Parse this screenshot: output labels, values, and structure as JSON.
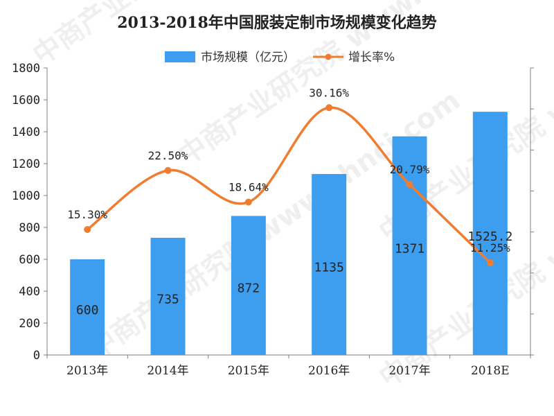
{
  "chart_data": {
    "type": "bar",
    "title": "2013-2018年中国服装定制市场规模变化趋势",
    "categories": [
      "2013年",
      "2014年",
      "2015年",
      "2016年",
      "2017年",
      "2018E"
    ],
    "series": [
      {
        "name": "市场规模（亿元）",
        "type": "bar",
        "values": [
          600,
          735,
          872,
          1135,
          1371,
          1525.2
        ],
        "labels": [
          "600",
          "735",
          "872",
          "1135",
          "1371",
          "1525.2"
        ],
        "color": "#3d9ef0",
        "axis": "left"
      },
      {
        "name": "增长率%",
        "type": "line",
        "values": [
          15.3,
          22.5,
          18.64,
          30.16,
          20.79,
          11.25
        ],
        "labels": [
          "15.30%",
          "22.50%",
          "18.64%",
          "30.16%",
          "20.79%",
          "11.25%"
        ],
        "color": "#ee7d31",
        "axis": "right"
      }
    ],
    "y_left": {
      "ylim": [
        0,
        1800
      ],
      "ticks": [
        "0",
        "200",
        "400",
        "600",
        "800",
        "1000",
        "1200",
        "1400",
        "1600",
        "1800"
      ]
    },
    "y_right": {
      "ylim": [
        0,
        35
      ],
      "tick_labels_visible": false
    },
    "legend": "top-center",
    "grid": false,
    "watermark": "中商产业研究院 www.chnci.com"
  }
}
